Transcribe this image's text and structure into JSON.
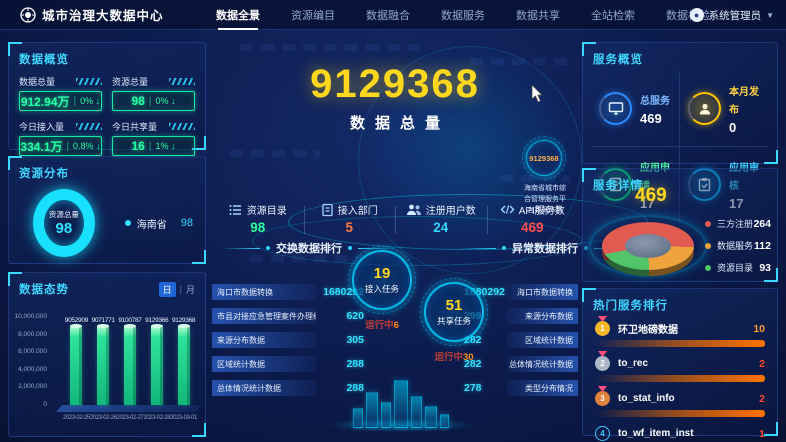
{
  "header": {
    "logo_title": "城市治理大数据中心",
    "tabs": [
      "数据全景",
      "资源编目",
      "数据融合",
      "数据服务",
      "数据共享",
      "全站检索",
      "数据核验"
    ],
    "user_label": "系统管理员"
  },
  "left": {
    "overview": {
      "title": "数据概览",
      "stats": [
        {
          "label": "数据总量",
          "value": "912.94万",
          "pct": "0%",
          "arrow": "↓"
        },
        {
          "label": "资源总量",
          "value": "98",
          "pct": "0%",
          "arrow": "↓"
        },
        {
          "label": "今日接入量",
          "value": "334.1万",
          "pct": "0.8%",
          "arrow": "↓"
        },
        {
          "label": "今日共享量",
          "value": "16",
          "pct": "1%",
          "arrow": "↓"
        }
      ]
    },
    "resource": {
      "title": "资源分布",
      "center_label": "资源总量",
      "center_value": "98",
      "legend_name": "海南省",
      "legend_value": "98"
    },
    "trend": {
      "title": "数据态势",
      "toggle_day": "日",
      "toggle_divider": "|",
      "toggle_month": "月"
    }
  },
  "center": {
    "total_value": "9129368",
    "total_label": "数据总量",
    "orbit_value": "9129368",
    "orbit_caption_1": "海南省城市综",
    "orbit_caption_2": "合管理服务平",
    "orbit_caption_3": "台数据体系",
    "stats": [
      {
        "label": "资源目录",
        "value": "98"
      },
      {
        "label": "接入部门",
        "value": "5"
      },
      {
        "label": "注册用户数",
        "value": "24"
      },
      {
        "label": "API服务数",
        "value": "469"
      }
    ],
    "exchange_title": "交换数据排行",
    "abnormal_title": "异常数据排行",
    "exchange_items": [
      {
        "name": "海口市数据转换",
        "value": "1680292"
      },
      {
        "name": "市县对接应急管理案件办理统...",
        "value": "620"
      },
      {
        "name": "来源分布数据",
        "value": "305"
      },
      {
        "name": "区域统计数据",
        "value": "288"
      },
      {
        "name": "总体情况统计数据",
        "value": "288"
      }
    ],
    "abnormal_items": [
      {
        "value": "1680292",
        "name": "海口市数据转换"
      },
      {
        "value": "299",
        "name": "来源分布数据"
      },
      {
        "value": "282",
        "name": "区域统计数据"
      },
      {
        "value": "282",
        "name": "总体情况统计数据"
      },
      {
        "value": "278",
        "name": "类型分布情况"
      }
    ],
    "task_access": {
      "value": "19",
      "label": "接入任务",
      "running_label": "运行中",
      "running_value": "6"
    },
    "task_share": {
      "value": "51",
      "label": "共享任务",
      "running_label": "运行中",
      "running_value": "30"
    }
  },
  "right": {
    "service_overview": {
      "title": "服务概览",
      "items": [
        {
          "label": "总服务",
          "value": "469"
        },
        {
          "label": "本月发布",
          "value": "0"
        },
        {
          "label": "应用申请",
          "value": "17"
        },
        {
          "label": "应用审核",
          "value": "17"
        }
      ]
    },
    "service_detail": {
      "title": "服务详情",
      "total": "469",
      "legend": [
        {
          "name": "三方注册",
          "value": "264"
        },
        {
          "name": "数据服务",
          "value": "112"
        },
        {
          "name": "资源目录",
          "value": "93"
        }
      ]
    },
    "hot": {
      "title": "热门服务排行",
      "items": [
        {
          "rank": "1",
          "name": "环卫地磅数据",
          "value": "10"
        },
        {
          "rank": "2",
          "name": "to_rec",
          "value": "2"
        },
        {
          "rank": "3",
          "name": "to_stat_info",
          "value": "2"
        },
        {
          "rank": "4",
          "name": "to_wf_item_inst",
          "value": "1"
        }
      ]
    }
  },
  "colors": {
    "accent_cyan": "#2fd8ff",
    "value_green": "#24ffa6",
    "value_yellow": "#ffd71c",
    "value_orange": "#ff7a3c",
    "value_red": "#ff5050"
  },
  "chart_data": [
    {
      "type": "bar",
      "title": "数据态势",
      "categories": [
        "2023-02-25",
        "2023-02-26",
        "2023-02-27",
        "2023-02-28",
        "2023-03-01"
      ],
      "values": [
        9052909,
        9071771,
        9100787,
        9129366,
        9129368
      ],
      "y_ticks": [
        "10,000,000",
        "8,000,000",
        "6,000,000",
        "4,000,000",
        "2,000,000",
        "0"
      ],
      "ylim": [
        0,
        10000000
      ],
      "xlabel": "",
      "ylabel": "",
      "unit_toggle": [
        "日",
        "月"
      ]
    },
    {
      "type": "pie",
      "title": "资源分布",
      "categories": [
        "海南省"
      ],
      "values": [
        98
      ],
      "center_label": "资源总量",
      "center_value": 98
    },
    {
      "type": "pie",
      "title": "服务详情",
      "categories": [
        "三方注册",
        "数据服务",
        "资源目录"
      ],
      "values": [
        264,
        112,
        93
      ],
      "total": 469,
      "colors": [
        "#e25b50",
        "#efa33c",
        "#52c46a"
      ]
    },
    {
      "type": "bar",
      "title": "热门服务排行",
      "categories": [
        "环卫地磅数据",
        "to_rec",
        "to_stat_info",
        "to_wf_item_inst"
      ],
      "values": [
        10,
        2,
        2,
        1
      ]
    }
  ]
}
